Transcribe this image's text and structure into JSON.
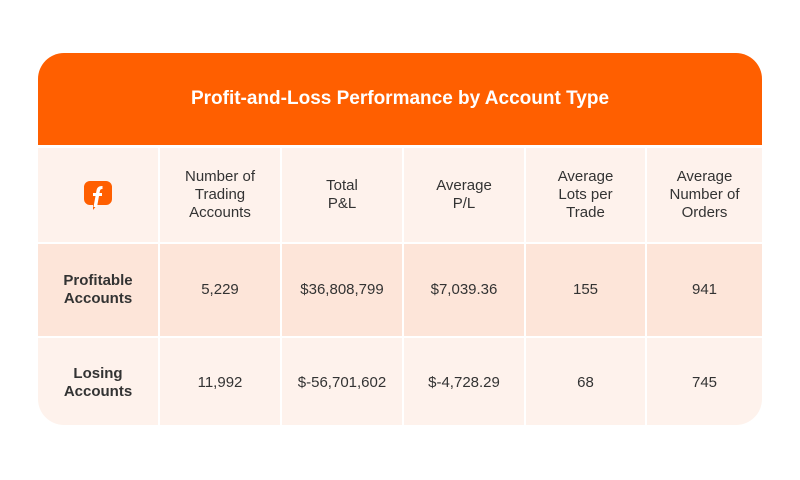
{
  "title": "Profit-and-Loss Performance by Account Type",
  "brand_color": "#ff5f00",
  "logo_icon": "f-logo-icon",
  "headers": [
    "Number of\nTrading\nAccounts",
    "Total\nP&L",
    "Average\nP/L",
    "Average\nLots per\nTrade",
    "Average\nNumber of\nOrders"
  ],
  "rows": [
    {
      "label": "Profitable\nAccounts",
      "values": [
        "5,229",
        "$36,808,799",
        "$7,039.36",
        "155",
        "941"
      ]
    },
    {
      "label": "Losing\nAccounts",
      "values": [
        "11,992",
        "$-56,701,602",
        "$-4,728.29",
        "68",
        "745"
      ]
    }
  ]
}
